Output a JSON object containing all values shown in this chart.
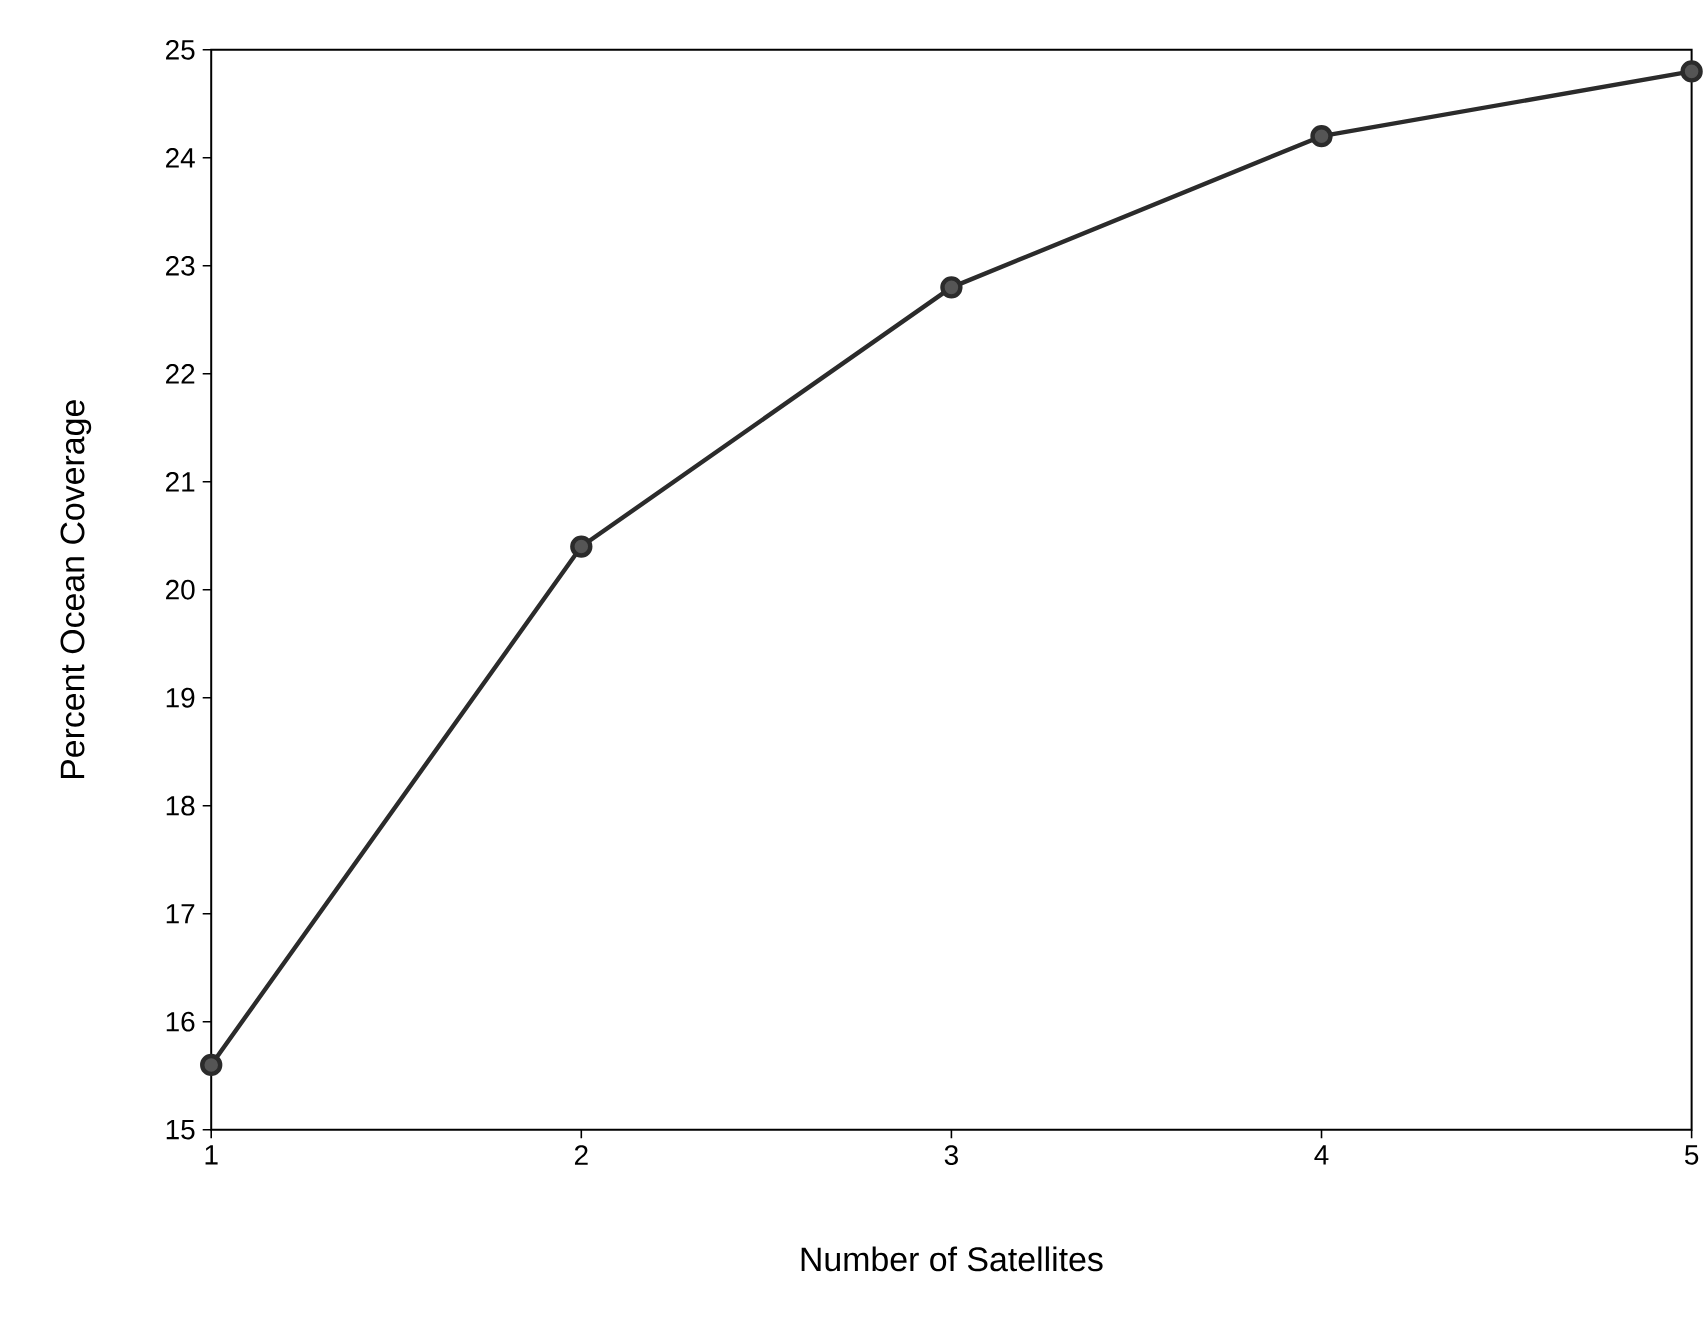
{
  "chart_data": {
    "type": "line",
    "xlabel": "Number of Satellites",
    "ylabel": "Percent Ocean Coverage",
    "x": [
      1,
      2,
      3,
      4,
      5
    ],
    "series": [
      {
        "color": "#2b2b2b",
        "values": [
          15.6,
          20.4,
          22.8,
          24.2,
          24.8
        ]
      }
    ],
    "xlim": [
      1,
      5
    ],
    "ylim": [
      15,
      25
    ],
    "xticks": [
      1,
      2,
      3,
      4,
      5
    ],
    "yticks": [
      15,
      16,
      17,
      18,
      19,
      20,
      21,
      22,
      23,
      24,
      25
    ],
    "marker": "circle",
    "line_style": "solid"
  }
}
